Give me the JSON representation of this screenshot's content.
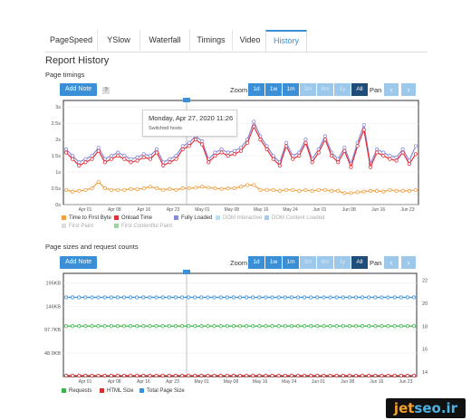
{
  "tabs": [
    {
      "label": "PageSpeed",
      "active": false
    },
    {
      "label": "YSlow",
      "active": false
    },
    {
      "label": "Waterfall",
      "active": false
    },
    {
      "label": "Timings",
      "active": false
    },
    {
      "label": "Video",
      "active": false
    },
    {
      "label": "History",
      "active": true
    }
  ],
  "title": "Report History",
  "timings": {
    "section_label": "Page timings",
    "add_note": "Add Note",
    "help": "?",
    "zoom_label": "Zoom",
    "zoom_buttons": [
      "1d",
      "1w",
      "1m",
      "3m",
      "6m",
      "1y",
      "All"
    ],
    "pan_label": "Pan",
    "pan_left": "‹",
    "pan_right": "›",
    "tooltip": {
      "date": "Monday, Apr 27, 2020 11:26",
      "text": "Switched hosts"
    },
    "legend": [
      "Time to First Byte",
      "Onload Time",
      "Fully Loaded",
      "DOM Interactive",
      "DOM Content Loaded",
      "First Paint",
      "First Contentful Paint"
    ]
  },
  "sizes": {
    "section_label": "Page sizes and request counts",
    "add_note": "Add Note",
    "zoom_label": "Zoom",
    "zoom_buttons": [
      "1d",
      "1w",
      "1m",
      "3m",
      "6m",
      "1y",
      "All"
    ],
    "pan_label": "Pan",
    "pan_left": "‹",
    "pan_right": "›",
    "legend": [
      "Requests",
      "HTML Size",
      "Total Page Size"
    ]
  },
  "colors": {
    "accent": "#3a8fd6",
    "ttfb": "#f0a040",
    "onload": "#e0303a",
    "fully_loaded": "#8a8ad8",
    "requests": "#3cb44b",
    "html_size": "#d03030",
    "total_size": "#3a8fd6"
  },
  "chart_data": [
    {
      "type": "line",
      "title": "",
      "x_ticks": [
        "Apr 01",
        "Apr 08",
        "Apr 16",
        "Apr 23",
        "May 01",
        "May 08",
        "May 16",
        "May 24",
        "Jun 01",
        "Jun 08",
        "Jun 16",
        "Jun 23"
      ],
      "ylim": [
        0,
        3.2
      ],
      "y_ticks": [
        "0s",
        "0.5s",
        "1s",
        "1.5s",
        "2s",
        "2.5s",
        "3s"
      ],
      "series": [
        {
          "name": "Fully Loaded",
          "values": [
            1.7,
            1.5,
            1.3,
            1.4,
            1.5,
            1.75,
            1.4,
            1.5,
            1.6,
            1.5,
            1.4,
            1.45,
            1.55,
            1.5,
            1.7,
            1.3,
            1.4,
            1.5,
            1.8,
            1.9,
            2.1,
            1.95,
            1.4,
            1.6,
            1.7,
            1.6,
            1.65,
            1.75,
            2.0,
            2.55,
            2.1,
            1.8,
            1.5,
            1.3,
            1.9,
            1.5,
            1.6,
            2.0,
            1.4,
            1.7,
            2.1,
            1.6,
            1.4,
            1.75,
            1.25,
            1.9,
            2.45,
            1.25,
            1.7,
            1.6,
            1.5,
            1.45,
            1.7,
            1.35,
            1.8
          ]
        },
        {
          "name": "Onload Time",
          "values": [
            1.6,
            1.4,
            1.2,
            1.3,
            1.4,
            1.65,
            1.3,
            1.4,
            1.5,
            1.4,
            1.3,
            1.35,
            1.45,
            1.4,
            1.6,
            1.2,
            1.3,
            1.4,
            1.7,
            1.8,
            2.0,
            1.85,
            1.3,
            1.5,
            1.6,
            1.5,
            1.55,
            1.65,
            1.9,
            2.4,
            2.0,
            1.7,
            1.4,
            1.2,
            1.8,
            1.4,
            1.5,
            1.9,
            1.3,
            1.6,
            2.0,
            1.5,
            1.3,
            1.65,
            1.15,
            1.8,
            2.3,
            1.15,
            1.6,
            1.5,
            1.4,
            1.35,
            1.6,
            1.25,
            1.55
          ]
        },
        {
          "name": "Time to First Byte",
          "values": [
            0.45,
            0.4,
            0.42,
            0.45,
            0.5,
            0.7,
            0.5,
            0.45,
            0.45,
            0.45,
            0.48,
            0.47,
            0.5,
            0.55,
            0.5,
            0.45,
            0.48,
            0.45,
            0.5,
            0.5,
            0.52,
            0.55,
            0.52,
            0.5,
            0.48,
            0.5,
            0.5,
            0.55,
            0.6,
            0.6,
            0.45,
            0.45,
            0.45,
            0.42,
            0.45,
            0.45,
            0.42,
            0.45,
            0.42,
            0.45,
            0.45,
            0.42,
            0.42,
            0.35,
            0.35,
            0.38,
            0.4,
            0.42,
            0.42,
            0.4,
            0.45,
            0.42,
            0.42,
            0.42,
            0.45
          ]
        }
      ],
      "annotation": {
        "x": "Apr 27",
        "text": "Switched hosts"
      }
    },
    {
      "type": "line",
      "title": "",
      "x_ticks": [
        "Apr 01",
        "Apr 08",
        "Apr 16",
        "Apr 23",
        "May 01",
        "May 08",
        "May 16",
        "May 24",
        "Jun 01",
        "Jun 08",
        "Jun 16",
        "Jun 23"
      ],
      "y_left_ticks": [
        "48.9KB",
        "97.7KB",
        "146KB",
        "195KB"
      ],
      "y_right_ticks": [
        "14",
        "16",
        "18",
        "20",
        "22"
      ],
      "series": [
        {
          "name": "Total Page Size",
          "axis": "left",
          "constant_value": 165
        },
        {
          "name": "Requests",
          "axis": "right",
          "constant_value": 18
        },
        {
          "name": "HTML Size",
          "axis": "left",
          "constant_value": 0
        }
      ],
      "points_count": 55
    }
  ]
}
